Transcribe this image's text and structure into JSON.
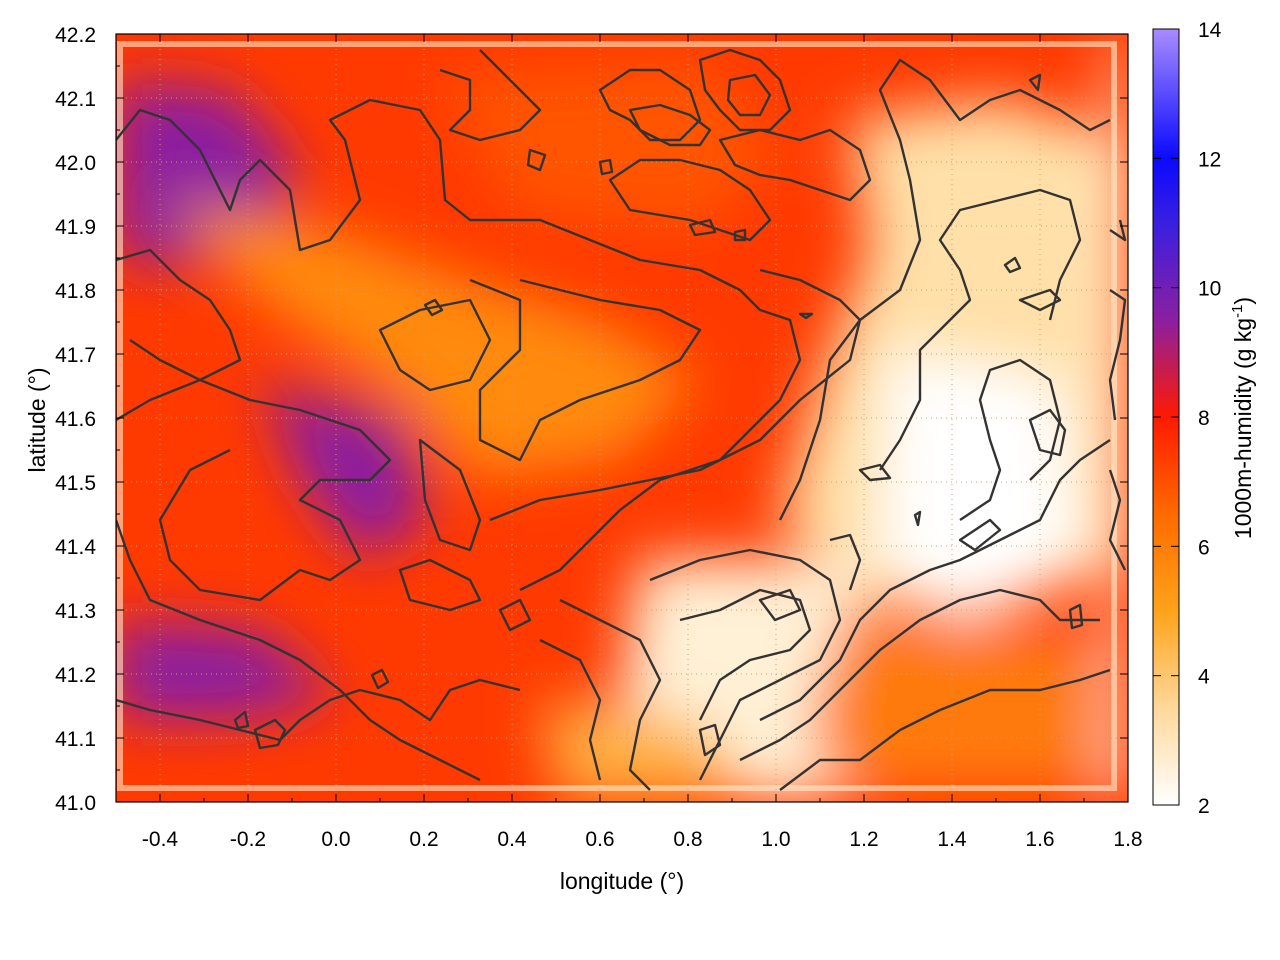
{
  "chart_data": {
    "type": "heatmap",
    "xlabel": "longitude (°)",
    "ylabel": "latitude (°)",
    "xlim": [
      -0.5,
      1.8
    ],
    "ylim": [
      41.0,
      42.2
    ],
    "x_ticks": [
      -0.4,
      -0.2,
      0.0,
      0.2,
      0.4,
      0.6,
      0.8,
      1.0,
      1.2,
      1.4,
      1.6,
      1.8
    ],
    "x_tick_labels": [
      "-0.4",
      "-0.2",
      "0.0",
      "0.2",
      "0.4",
      "0.6",
      "0.8",
      "1.0",
      "1.2",
      "1.4",
      "1.6",
      "1.8"
    ],
    "y_ticks": [
      41.0,
      41.1,
      41.2,
      41.3,
      41.4,
      41.5,
      41.6,
      41.7,
      41.8,
      41.9,
      42.0,
      42.1,
      42.2
    ],
    "y_tick_labels": [
      "41.0",
      "41.1",
      "41.2",
      "41.3",
      "41.4",
      "41.5",
      "41.6",
      "41.7",
      "41.8",
      "41.9",
      "42.0",
      "42.1",
      "42.2"
    ],
    "grid": true,
    "colorbar": {
      "label": "1000m-humidity (g kg",
      "label_superscript": "-1",
      "label_suffix": ")",
      "range": [
        2,
        14
      ],
      "ticks": [
        2,
        4,
        6,
        8,
        10,
        12,
        14
      ],
      "tick_labels": [
        "2",
        "4",
        "6",
        "8",
        "10",
        "12",
        "14"
      ],
      "stops": [
        {
          "value": 2,
          "color": "#ffffff"
        },
        {
          "value": 3.5,
          "color": "#ffd89a"
        },
        {
          "value": 5,
          "color": "#ffa31a"
        },
        {
          "value": 6.5,
          "color": "#ff6a00"
        },
        {
          "value": 8,
          "color": "#ff1a00"
        },
        {
          "value": 9.5,
          "color": "#8b1fa0"
        },
        {
          "value": 11,
          "color": "#3a1fe0"
        },
        {
          "value": 12,
          "color": "#0a0aff"
        },
        {
          "value": 14,
          "color": "#a98cff"
        }
      ]
    },
    "humidity_field_samples": [
      {
        "lon": -0.45,
        "lat": 42.0,
        "value": 9.5
      },
      {
        "lon": -0.35,
        "lat": 41.2,
        "value": 9.5
      },
      {
        "lon": -0.1,
        "lat": 41.5,
        "value": 9.0
      },
      {
        "lon": 0.1,
        "lat": 41.8,
        "value": 8.0
      },
      {
        "lon": 0.3,
        "lat": 41.3,
        "value": 8.5
      },
      {
        "lon": 0.55,
        "lat": 42.05,
        "value": 7.5
      },
      {
        "lon": 0.6,
        "lat": 41.65,
        "value": 7.0
      },
      {
        "lon": 0.75,
        "lat": 41.35,
        "value": 4.5
      },
      {
        "lon": 0.95,
        "lat": 41.1,
        "value": 3.0
      },
      {
        "lon": 1.3,
        "lat": 41.9,
        "value": 4.0
      },
      {
        "lon": 1.45,
        "lat": 41.5,
        "value": 2.5
      },
      {
        "lon": 1.35,
        "lat": 41.15,
        "value": 6.5
      },
      {
        "lon": 1.65,
        "lat": 41.2,
        "value": 5.5
      },
      {
        "lon": 1.6,
        "lat": 41.7,
        "value": 4.0
      }
    ]
  }
}
